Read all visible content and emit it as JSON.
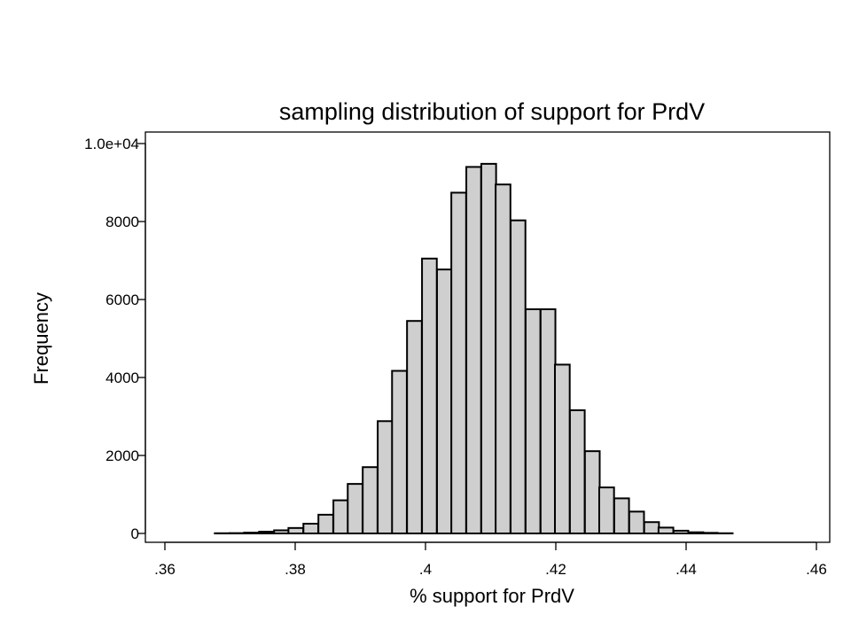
{
  "chart_data": {
    "type": "bar",
    "title": "sampling distribution of support for PrdV",
    "xlabel": "% support for PrdV",
    "ylabel": "Frequency",
    "xlim": [
      0.36,
      0.46
    ],
    "ylim": [
      0,
      10000
    ],
    "xticks": [
      0.36,
      0.38,
      0.4,
      0.42,
      0.44,
      0.46
    ],
    "xtick_labels": [
      ".36",
      ".38",
      ".4",
      ".42",
      ".44",
      ".46"
    ],
    "yticks": [
      0,
      2000,
      4000,
      6000,
      8000,
      10000
    ],
    "ytick_labels": [
      "0",
      "2000",
      "4000",
      "6000",
      "8000",
      "1.0e+04"
    ],
    "bin_width": 0.00227,
    "series": [
      {
        "x": [
          0.3688,
          0.3711,
          0.3733,
          0.3756,
          0.3779,
          0.3801,
          0.3824,
          0.3847,
          0.387,
          0.3892,
          0.3915,
          0.3938,
          0.396,
          0.3983,
          0.4006,
          0.4029,
          0.4051,
          0.4074,
          0.4097,
          0.4119,
          0.4142,
          0.4165,
          0.4188,
          0.421,
          0.4233,
          0.4256,
          0.4278,
          0.4301,
          0.4324,
          0.4347,
          0.4369,
          0.4392,
          0.4415,
          0.4437,
          0.446
        ],
        "values": [
          5,
          8,
          20,
          45,
          80,
          140,
          250,
          480,
          850,
          1270,
          1700,
          2880,
          4170,
          5450,
          7050,
          6770,
          8740,
          9400,
          9480,
          8950,
          8030,
          5750,
          5750,
          4330,
          3160,
          2110,
          1180,
          900,
          560,
          290,
          150,
          70,
          30,
          15,
          5
        ]
      }
    ],
    "grid": false,
    "legend": "none"
  }
}
